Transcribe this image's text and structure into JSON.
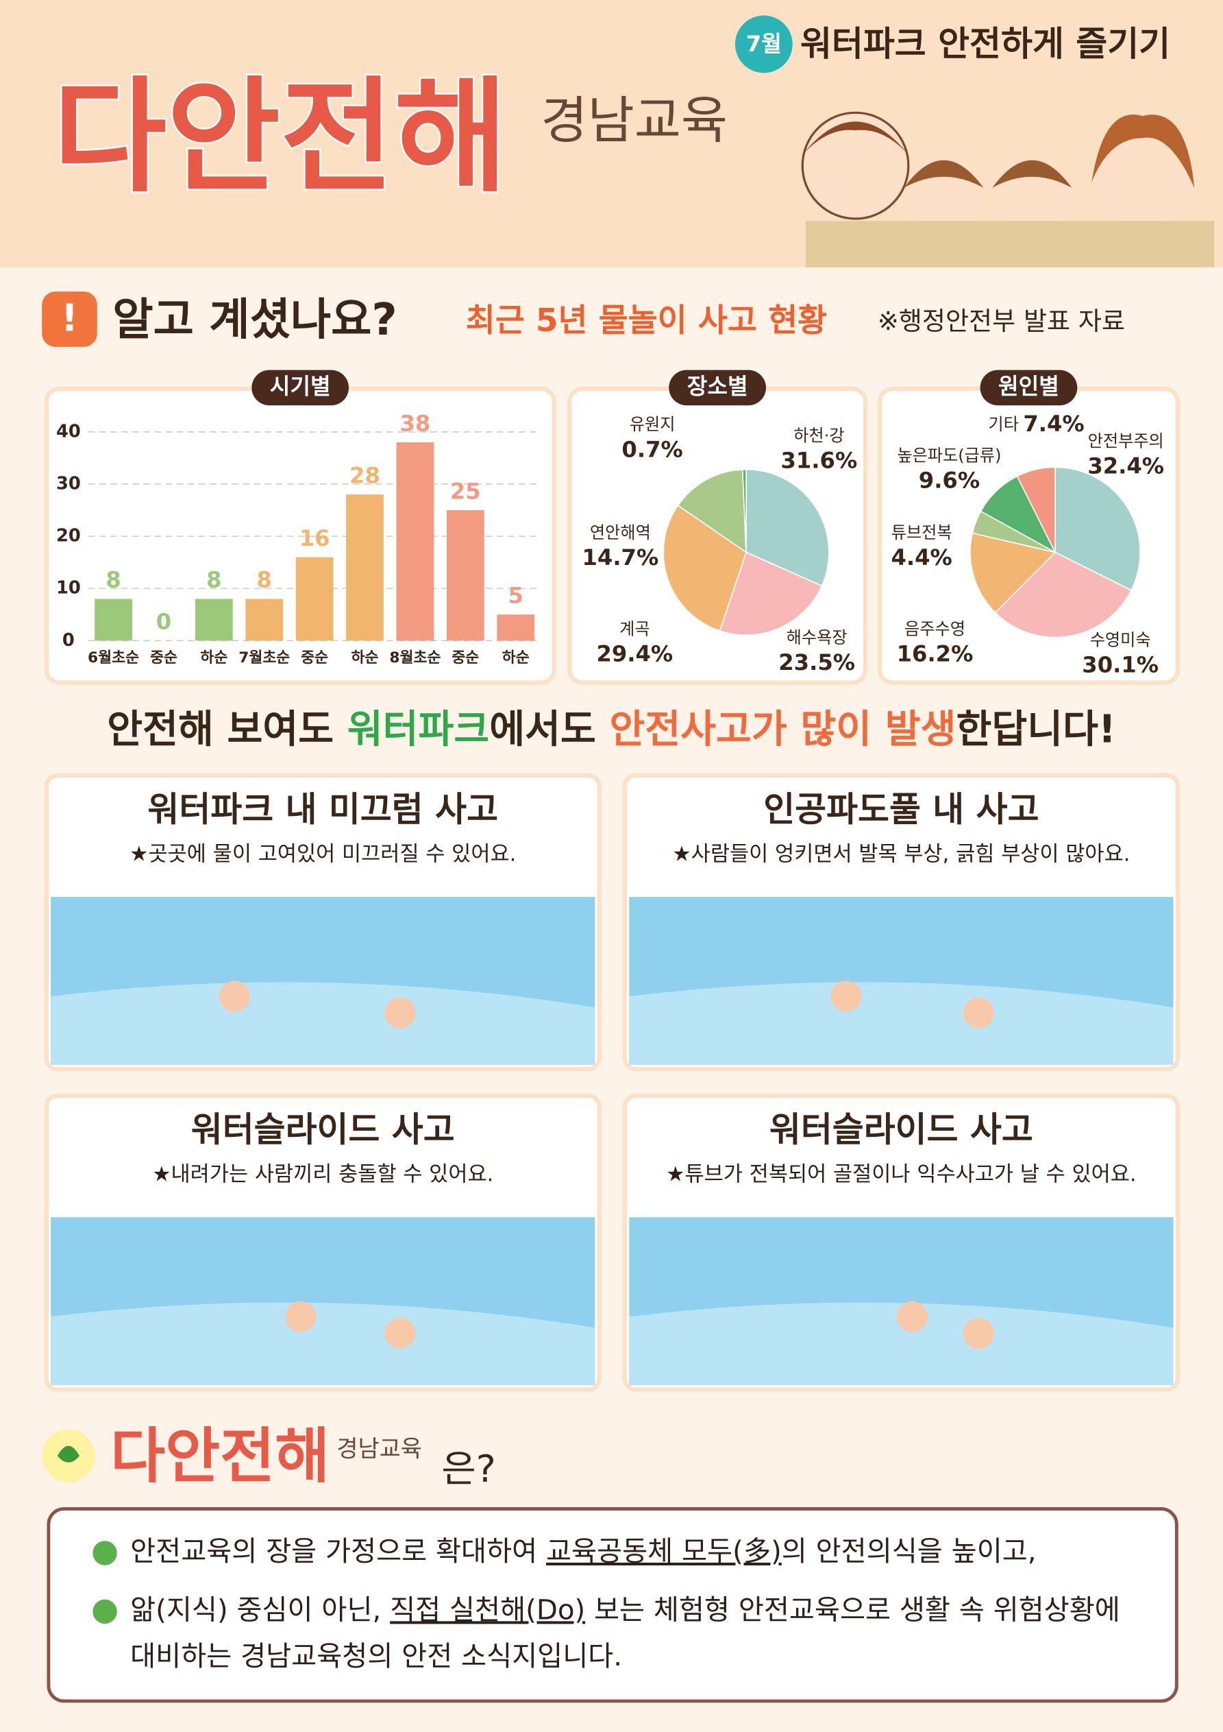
{
  "header": {
    "badge": "7월",
    "title": "워터파크 안전하게 즐기기",
    "logo": "다안전해",
    "logo_sub": "경남교육"
  },
  "section": {
    "title": "알고 계셨나요?",
    "subtitle": "최근 5년 물놀이 사고 현황",
    "source": "※행정안전부 발표 자료"
  },
  "chart_data": [
    {
      "type": "bar",
      "title": "시기별",
      "categories": [
        "6월초순",
        "중순",
        "하순",
        "7월초순",
        "중순",
        "하순",
        "8월초순",
        "중순",
        "하순"
      ],
      "values": [
        8,
        0,
        8,
        8,
        16,
        28,
        38,
        25,
        5
      ],
      "colors": [
        "#9cc979",
        "#9cc979",
        "#9cc979",
        "#f2b56d",
        "#f2b56d",
        "#f2b56d",
        "#f29b80",
        "#f29b80",
        "#f29b80"
      ],
      "ylim": [
        0,
        40
      ],
      "yticks": [
        0,
        10,
        20,
        30,
        40
      ],
      "grid": true
    },
    {
      "type": "pie",
      "title": "장소별",
      "categories": [
        "하천·강",
        "해수욕장",
        "계곡",
        "연안해역",
        "유원지"
      ],
      "values": [
        31.6,
        23.5,
        29.4,
        14.7,
        0.7
      ],
      "value_labels": [
        "31.6%",
        "23.5%",
        "29.4%",
        "14.7%",
        "0.7%"
      ],
      "colors": [
        "#a4d0cc",
        "#f7b8b7",
        "#f2b672",
        "#a9c98b",
        "#5fb36a"
      ]
    },
    {
      "type": "pie",
      "title": "원인별",
      "categories": [
        "안전부주의",
        "수영미숙",
        "음주수영",
        "튜브전복",
        "높은파도(급류)",
        "기타"
      ],
      "values": [
        32.4,
        30.1,
        16.2,
        4.4,
        9.6,
        7.4
      ],
      "value_labels": [
        "32.4%",
        "30.1%",
        "16.2%",
        "4.4%",
        "9.6%",
        "7.4%"
      ],
      "colors": [
        "#a4d0cc",
        "#f7b8b7",
        "#f2b672",
        "#a9c98b",
        "#55b36d",
        "#f29680"
      ]
    }
  ],
  "headline": [
    "안전해 보여도 ",
    "워터파크",
    "에서도 ",
    "안전사고가 많이 발생",
    "한답니다!"
  ],
  "cards": [
    {
      "title": "워터파크 내 미끄럼 사고",
      "desc": "★곳곳에 물이 고여있어 미끄러질 수 있어요."
    },
    {
      "title": "인공파도풀 내 사고",
      "desc": "★사람들이 엉키면서 발목 부상, 긁힘 부상이 많아요."
    },
    {
      "title": "워터슬라이드 사고",
      "desc": "★내려가는 사람끼리 충돌할 수 있어요."
    },
    {
      "title": "워터슬라이드 사고",
      "desc": "★튜브가 전복되어 골절이나 익수사고가 날 수 있어요."
    }
  ],
  "footer": {
    "logo": "다안전해",
    "logo_sub": "경남교육",
    "suffix": "은?",
    "bullets": [
      [
        "안전교육의 장을 가정으로 확대하여 ",
        "교육공동체 모두(多)",
        "의 안전의식을 높이고,"
      ],
      [
        "앎(지식) 중심이 아닌, ",
        "직접 실천해(Do)",
        " 보는 체험형 안전교육으로 생활 속 위험상황에"
      ],
      [
        "대비하는 경남교육청의 안전 소식지입니다."
      ]
    ]
  }
}
